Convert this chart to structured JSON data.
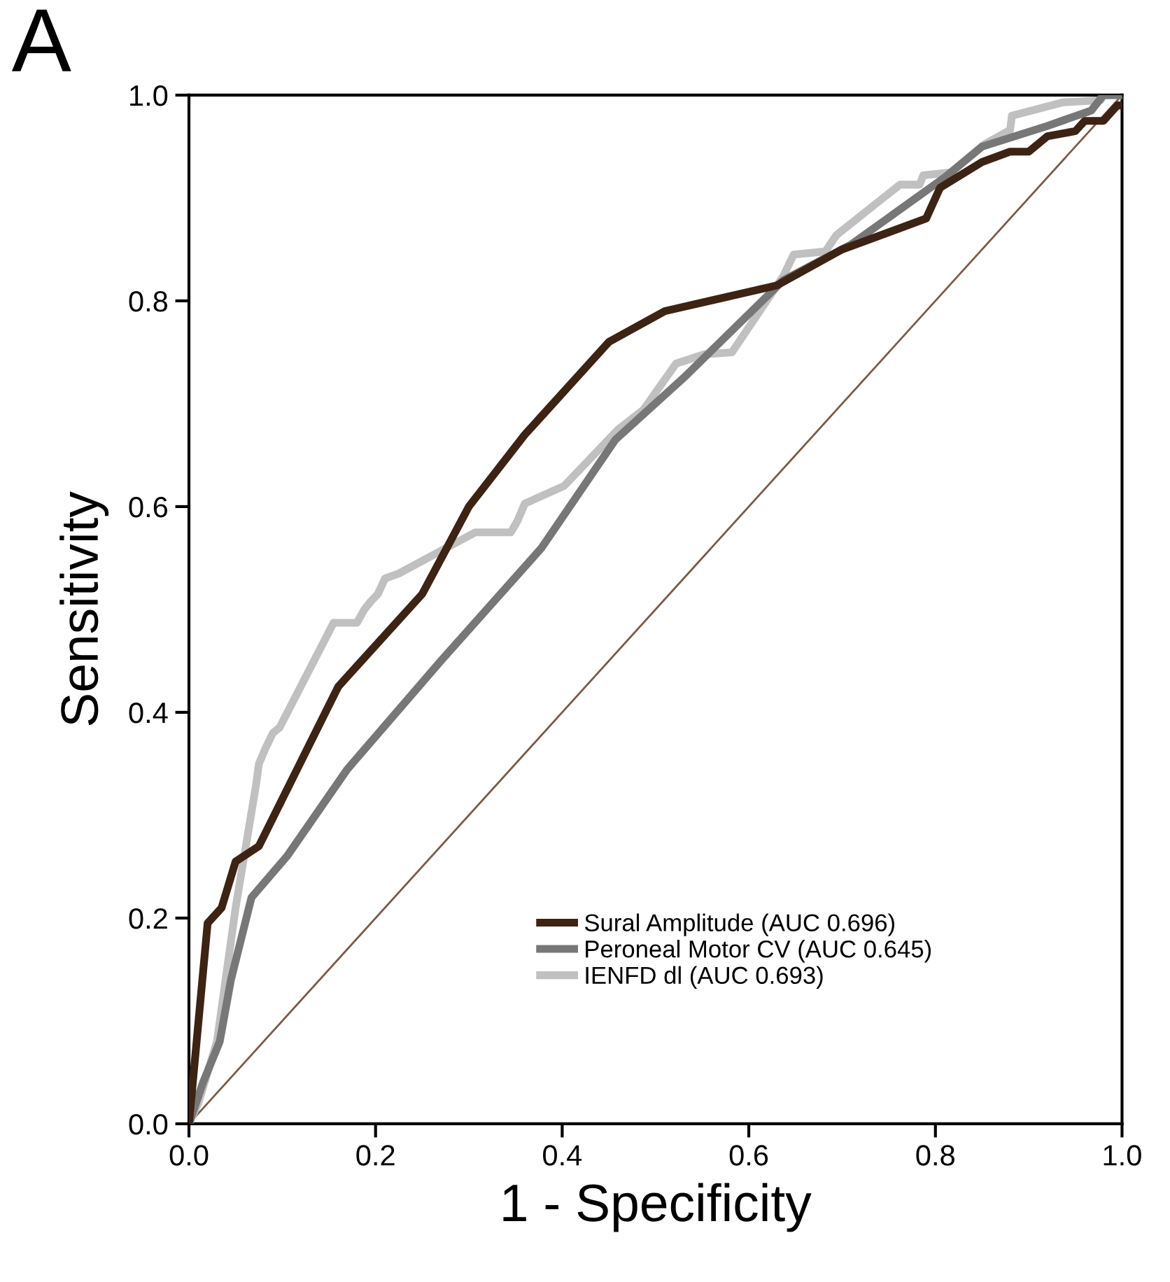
{
  "chart_data": {
    "type": "line",
    "xlabel": "1 - Specificity",
    "ylabel": "Sensitivity",
    "annotations": [
      "A"
    ],
    "xlim": [
      0.0,
      1.0
    ],
    "ylim": [
      0.0,
      1.0
    ],
    "xticks": [
      {
        "value": 0,
        "label": "0.0"
      },
      0.2,
      0.4,
      0.6,
      0.8,
      {
        "value": 1,
        "label": "1.0"
      }
    ],
    "yticks": [
      {
        "value": 0,
        "label": "0.0"
      },
      0.2,
      0.4,
      0.6,
      0.8,
      {
        "value": 1,
        "label": "1.0"
      }
    ],
    "grid": false,
    "legend": "bottom right",
    "marker": "none",
    "line_style": "solid",
    "series": [
      {
        "name": "Sural Amplitude (AUC 0.696)",
        "color": "#3d2314",
        "x": [
          0,
          0.02,
          0.035,
          0.05,
          0.075,
          0.16,
          0.25,
          0.3,
          0.36,
          0.45,
          0.51,
          0.63,
          0.7,
          0.79,
          0.805,
          0.85,
          0.88,
          0.9,
          0.92,
          0.95,
          0.96,
          0.98,
          0.995,
          1.0
        ],
        "values": [
          0,
          0.195,
          0.21,
          0.255,
          0.27,
          0.425,
          0.515,
          0.6,
          0.67,
          0.76,
          0.79,
          0.815,
          0.85,
          0.88,
          0.91,
          0.935,
          0.945,
          0.945,
          0.96,
          0.965,
          0.975,
          0.975,
          0.99,
          0.99
        ]
      },
      {
        "name": "Peroneal Motor CV (AUC 0.645)",
        "color": "#777777",
        "x": [
          0,
          0.015,
          0.033,
          0.045,
          0.067,
          0.105,
          0.17,
          0.27,
          0.378,
          0.457,
          0.53,
          0.637,
          0.71,
          0.81,
          0.85,
          0.92,
          0.967,
          0.98,
          1.0
        ],
        "values": [
          0,
          0.04,
          0.08,
          0.14,
          0.22,
          0.26,
          0.345,
          0.45,
          0.56,
          0.665,
          0.725,
          0.82,
          0.855,
          0.92,
          0.95,
          0.97,
          0.985,
          1.0,
          1.0
        ]
      },
      {
        "name": "IENFD dl (AUC 0.693)",
        "color": "#c0c0c0",
        "x": [
          0,
          0.01,
          0.03,
          0.05,
          0.072,
          0.075,
          0.082,
          0.09,
          0.097,
          0.155,
          0.18,
          0.188,
          0.195,
          0.2025,
          0.21,
          0.225,
          0.307,
          0.345,
          0.352,
          0.36,
          0.402,
          0.46,
          0.487,
          0.522,
          0.552,
          0.582,
          0.637,
          0.648,
          0.682,
          0.694,
          0.762,
          0.783,
          0.787,
          0.817,
          0.852,
          0.88,
          0.882,
          0.937,
          0.977,
          0.98,
          1.0
        ],
        "values": [
          0,
          0.02,
          0.08,
          0.21,
          0.33,
          0.35,
          0.365,
          0.38,
          0.385,
          0.487,
          0.487,
          0.5,
          0.508,
          0.515,
          0.53,
          0.535,
          0.575,
          0.575,
          0.586,
          0.603,
          0.62,
          0.675,
          0.694,
          0.739,
          0.748,
          0.75,
          0.824,
          0.845,
          0.848,
          0.864,
          0.913,
          0.913,
          0.922,
          0.925,
          0.952,
          0.966,
          0.98,
          0.993,
          0.995,
          1.0,
          1.0
        ]
      },
      {
        "color": "#7a5a48",
        "x": [
          0,
          1
        ],
        "values": [
          0,
          1
        ]
      }
    ]
  }
}
